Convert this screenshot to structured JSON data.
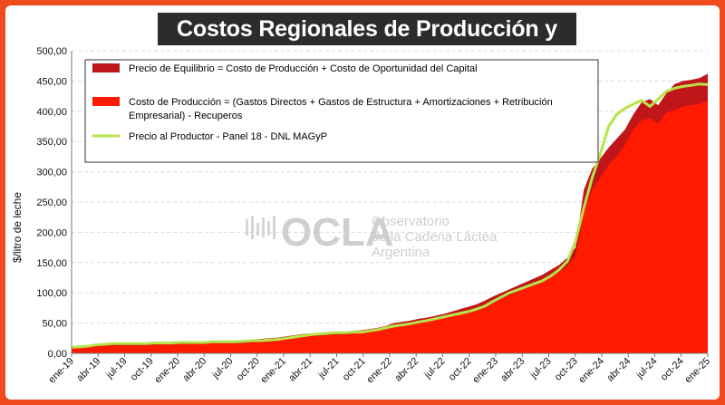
{
  "chart_data": {
    "type": "area",
    "title": "Costos Regionales de Producción y Precios",
    "ylabel": "$/litro de leche",
    "xlabel": "",
    "ylim": [
      0,
      500
    ],
    "yticks": [
      "0,00",
      "50,00",
      "100,00",
      "150,00",
      "200,00",
      "250,00",
      "300,00",
      "350,00",
      "400,00",
      "450,00",
      "500,00"
    ],
    "xticks": [
      "ene-19",
      "abr-19",
      "jul-19",
      "oct-19",
      "ene-20",
      "abr-20",
      "jul-20",
      "oct-20",
      "ene-21",
      "abr-21",
      "jul-21",
      "oct-21",
      "ene-22",
      "abr-22",
      "jul-22",
      "oct-22",
      "ene-23",
      "abr-23",
      "jul-23",
      "oct-23",
      "ene-24",
      "abr-24",
      "jul-24",
      "oct-24",
      "ene-25"
    ],
    "grid": true,
    "legend_position": "top-left",
    "colors": {
      "equilibrium": "#c0161a",
      "production": "#ff1a00",
      "producer": "#b7e34a"
    },
    "series": [
      {
        "name": "Precio de Equilibrio = Costo de Producción + Costo de Oportunidad del Capital",
        "values": [
          11,
          12,
          13,
          14,
          16,
          17,
          17,
          17,
          17,
          17,
          18,
          18,
          19,
          19,
          19,
          19,
          20,
          20,
          20,
          21,
          21,
          22,
          23,
          24,
          25,
          26,
          28,
          30,
          32,
          33,
          34,
          35,
          36,
          36,
          37,
          38,
          40,
          42,
          45,
          50,
          52,
          54,
          57,
          59,
          62,
          65,
          69,
          73,
          77,
          81,
          87,
          94,
          100,
          106,
          112,
          118,
          124,
          130,
          138,
          146,
          158,
          175,
          270,
          305,
          322,
          340,
          355,
          370,
          395,
          415,
          420,
          410,
          430,
          445,
          450,
          452,
          455,
          462
        ]
      },
      {
        "name": "Costo de Producción = (Gastos Directos + Gastos de Estructura + Amortizaciones + Retribución Empresarial) - Recuperos",
        "values": [
          8,
          9,
          10,
          11,
          12,
          13,
          13,
          13,
          13,
          13,
          14,
          14,
          14,
          15,
          15,
          15,
          16,
          16,
          16,
          16,
          16,
          17,
          18,
          19,
          20,
          21,
          23,
          25,
          27,
          28,
          29,
          30,
          31,
          31,
          32,
          33,
          35,
          37,
          40,
          43,
          45,
          47,
          50,
          52,
          55,
          58,
          61,
          65,
          68,
          72,
          77,
          84,
          90,
          96,
          102,
          108,
          112,
          118,
          126,
          134,
          144,
          160,
          232,
          270,
          290,
          312,
          325,
          345,
          370,
          385,
          388,
          380,
          398,
          402,
          408,
          410,
          412,
          418
        ]
      },
      {
        "name": "Precio al Productor - Panel 18 - DNL MAGyP",
        "values": [
          10,
          11,
          12,
          14,
          15,
          16,
          16,
          16,
          16,
          16,
          17,
          17,
          17,
          18,
          18,
          18,
          18,
          19,
          19,
          19,
          19,
          20,
          21,
          21,
          22,
          23,
          25,
          27,
          29,
          31,
          32,
          33,
          34,
          34,
          35,
          35,
          37,
          39,
          42,
          45,
          47,
          49,
          52,
          54,
          57,
          60,
          63,
          66,
          69,
          73,
          78,
          86,
          93,
          100,
          105,
          110,
          115,
          120,
          128,
          138,
          152,
          185,
          240,
          290,
          330,
          375,
          395,
          405,
          412,
          418,
          408,
          420,
          433,
          438,
          441,
          443,
          445,
          444
        ]
      }
    ]
  },
  "watermark": {
    "logo_text": "OCLA",
    "line1": "Observatorio",
    "line2": "de la Cadena Láctea",
    "line3": "Argentina"
  }
}
